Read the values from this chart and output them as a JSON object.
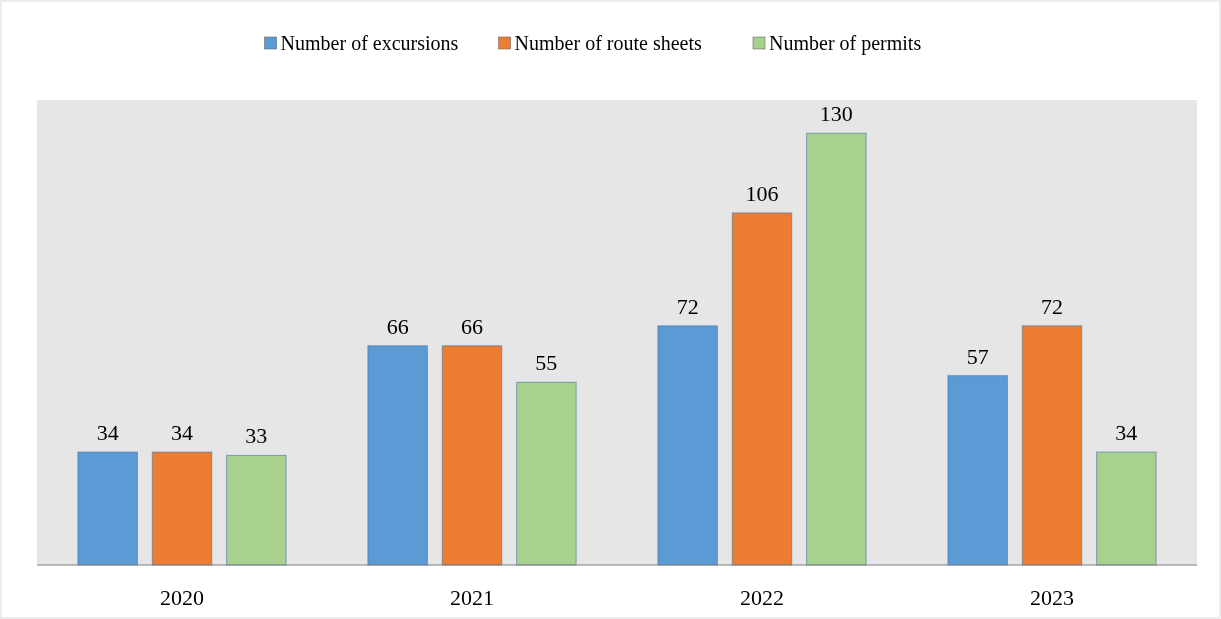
{
  "chart_data": {
    "type": "bar",
    "categories": [
      "2020",
      "2021",
      "2022",
      "2023"
    ],
    "series": [
      {
        "name": "Number of excursions",
        "color": "#5b9bd5",
        "values": [
          34,
          66,
          72,
          57
        ]
      },
      {
        "name": "Number of route sheets",
        "color": "#ed7d31",
        "values": [
          34,
          66,
          106,
          72
        ]
      },
      {
        "name": "Number of permits",
        "color": "#a9d18e",
        "values": [
          33,
          55,
          130,
          34
        ]
      }
    ],
    "ylim": [
      0,
      140
    ],
    "data_labels": true,
    "legend": "top",
    "tick_labels": "x"
  }
}
